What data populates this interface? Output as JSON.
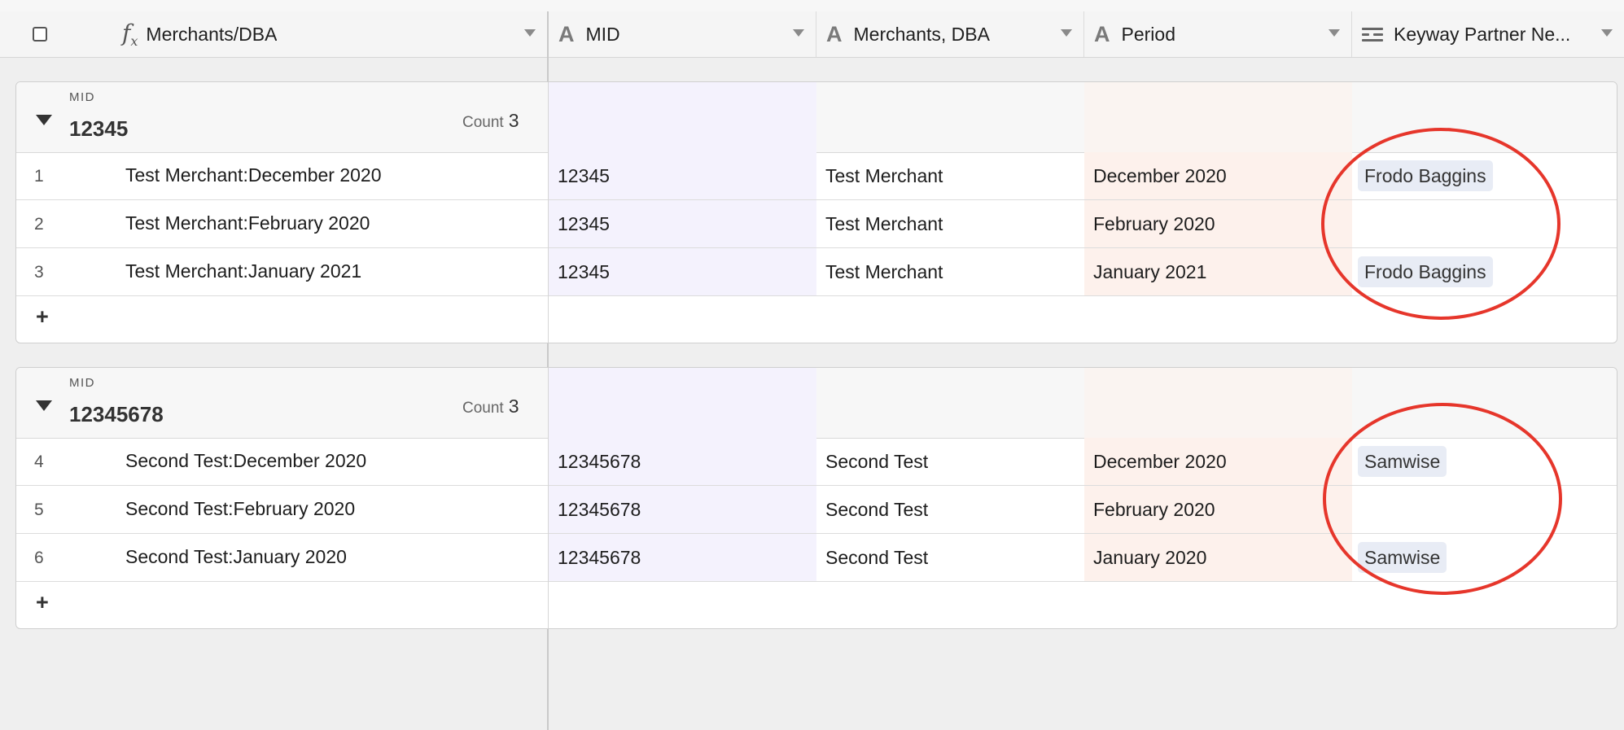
{
  "columns": [
    {
      "icon": "formula-icon",
      "label": "Merchants/DBA"
    },
    {
      "icon": "text-field-icon",
      "label": "MID"
    },
    {
      "icon": "text-field-icon",
      "label": "Merchants, DBA"
    },
    {
      "icon": "text-field-icon",
      "label": "Period"
    },
    {
      "icon": "linked-record-icon",
      "label": "Keyway Partner Ne..."
    }
  ],
  "groups": [
    {
      "field": "MID",
      "value": "12345",
      "count_label": "Count",
      "count": "3",
      "rows": [
        {
          "num": "1",
          "primary": "Test Merchant:December 2020",
          "mid": "12345",
          "dba": "Test Merchant",
          "period": "December 2020",
          "partner": "Frodo Baggins"
        },
        {
          "num": "2",
          "primary": "Test Merchant:February 2020",
          "mid": "12345",
          "dba": "Test Merchant",
          "period": "February 2020",
          "partner": ""
        },
        {
          "num": "3",
          "primary": "Test Merchant:January 2021",
          "mid": "12345",
          "dba": "Test Merchant",
          "period": "January 2021",
          "partner": "Frodo Baggins"
        }
      ]
    },
    {
      "field": "MID",
      "value": "12345678",
      "count_label": "Count",
      "count": "3",
      "rows": [
        {
          "num": "4",
          "primary": "Second Test:December 2020",
          "mid": "12345678",
          "dba": "Second Test",
          "period": "December 2020",
          "partner": "Samwise"
        },
        {
          "num": "5",
          "primary": "Second Test:February 2020",
          "mid": "12345678",
          "dba": "Second Test",
          "period": "February 2020",
          "partner": ""
        },
        {
          "num": "6",
          "primary": "Second Test:January 2020",
          "mid": "12345678",
          "dba": "Second Test",
          "period": "January 2020",
          "partner": "Samwise"
        }
      ]
    }
  ],
  "add_row_label": "+",
  "colors": {
    "mid_column_tint": "#f4f2fd",
    "period_column_tint": "#fdf1ec",
    "annotation_circle": "#e6362b",
    "tag_bg": "#e8ecf5"
  }
}
